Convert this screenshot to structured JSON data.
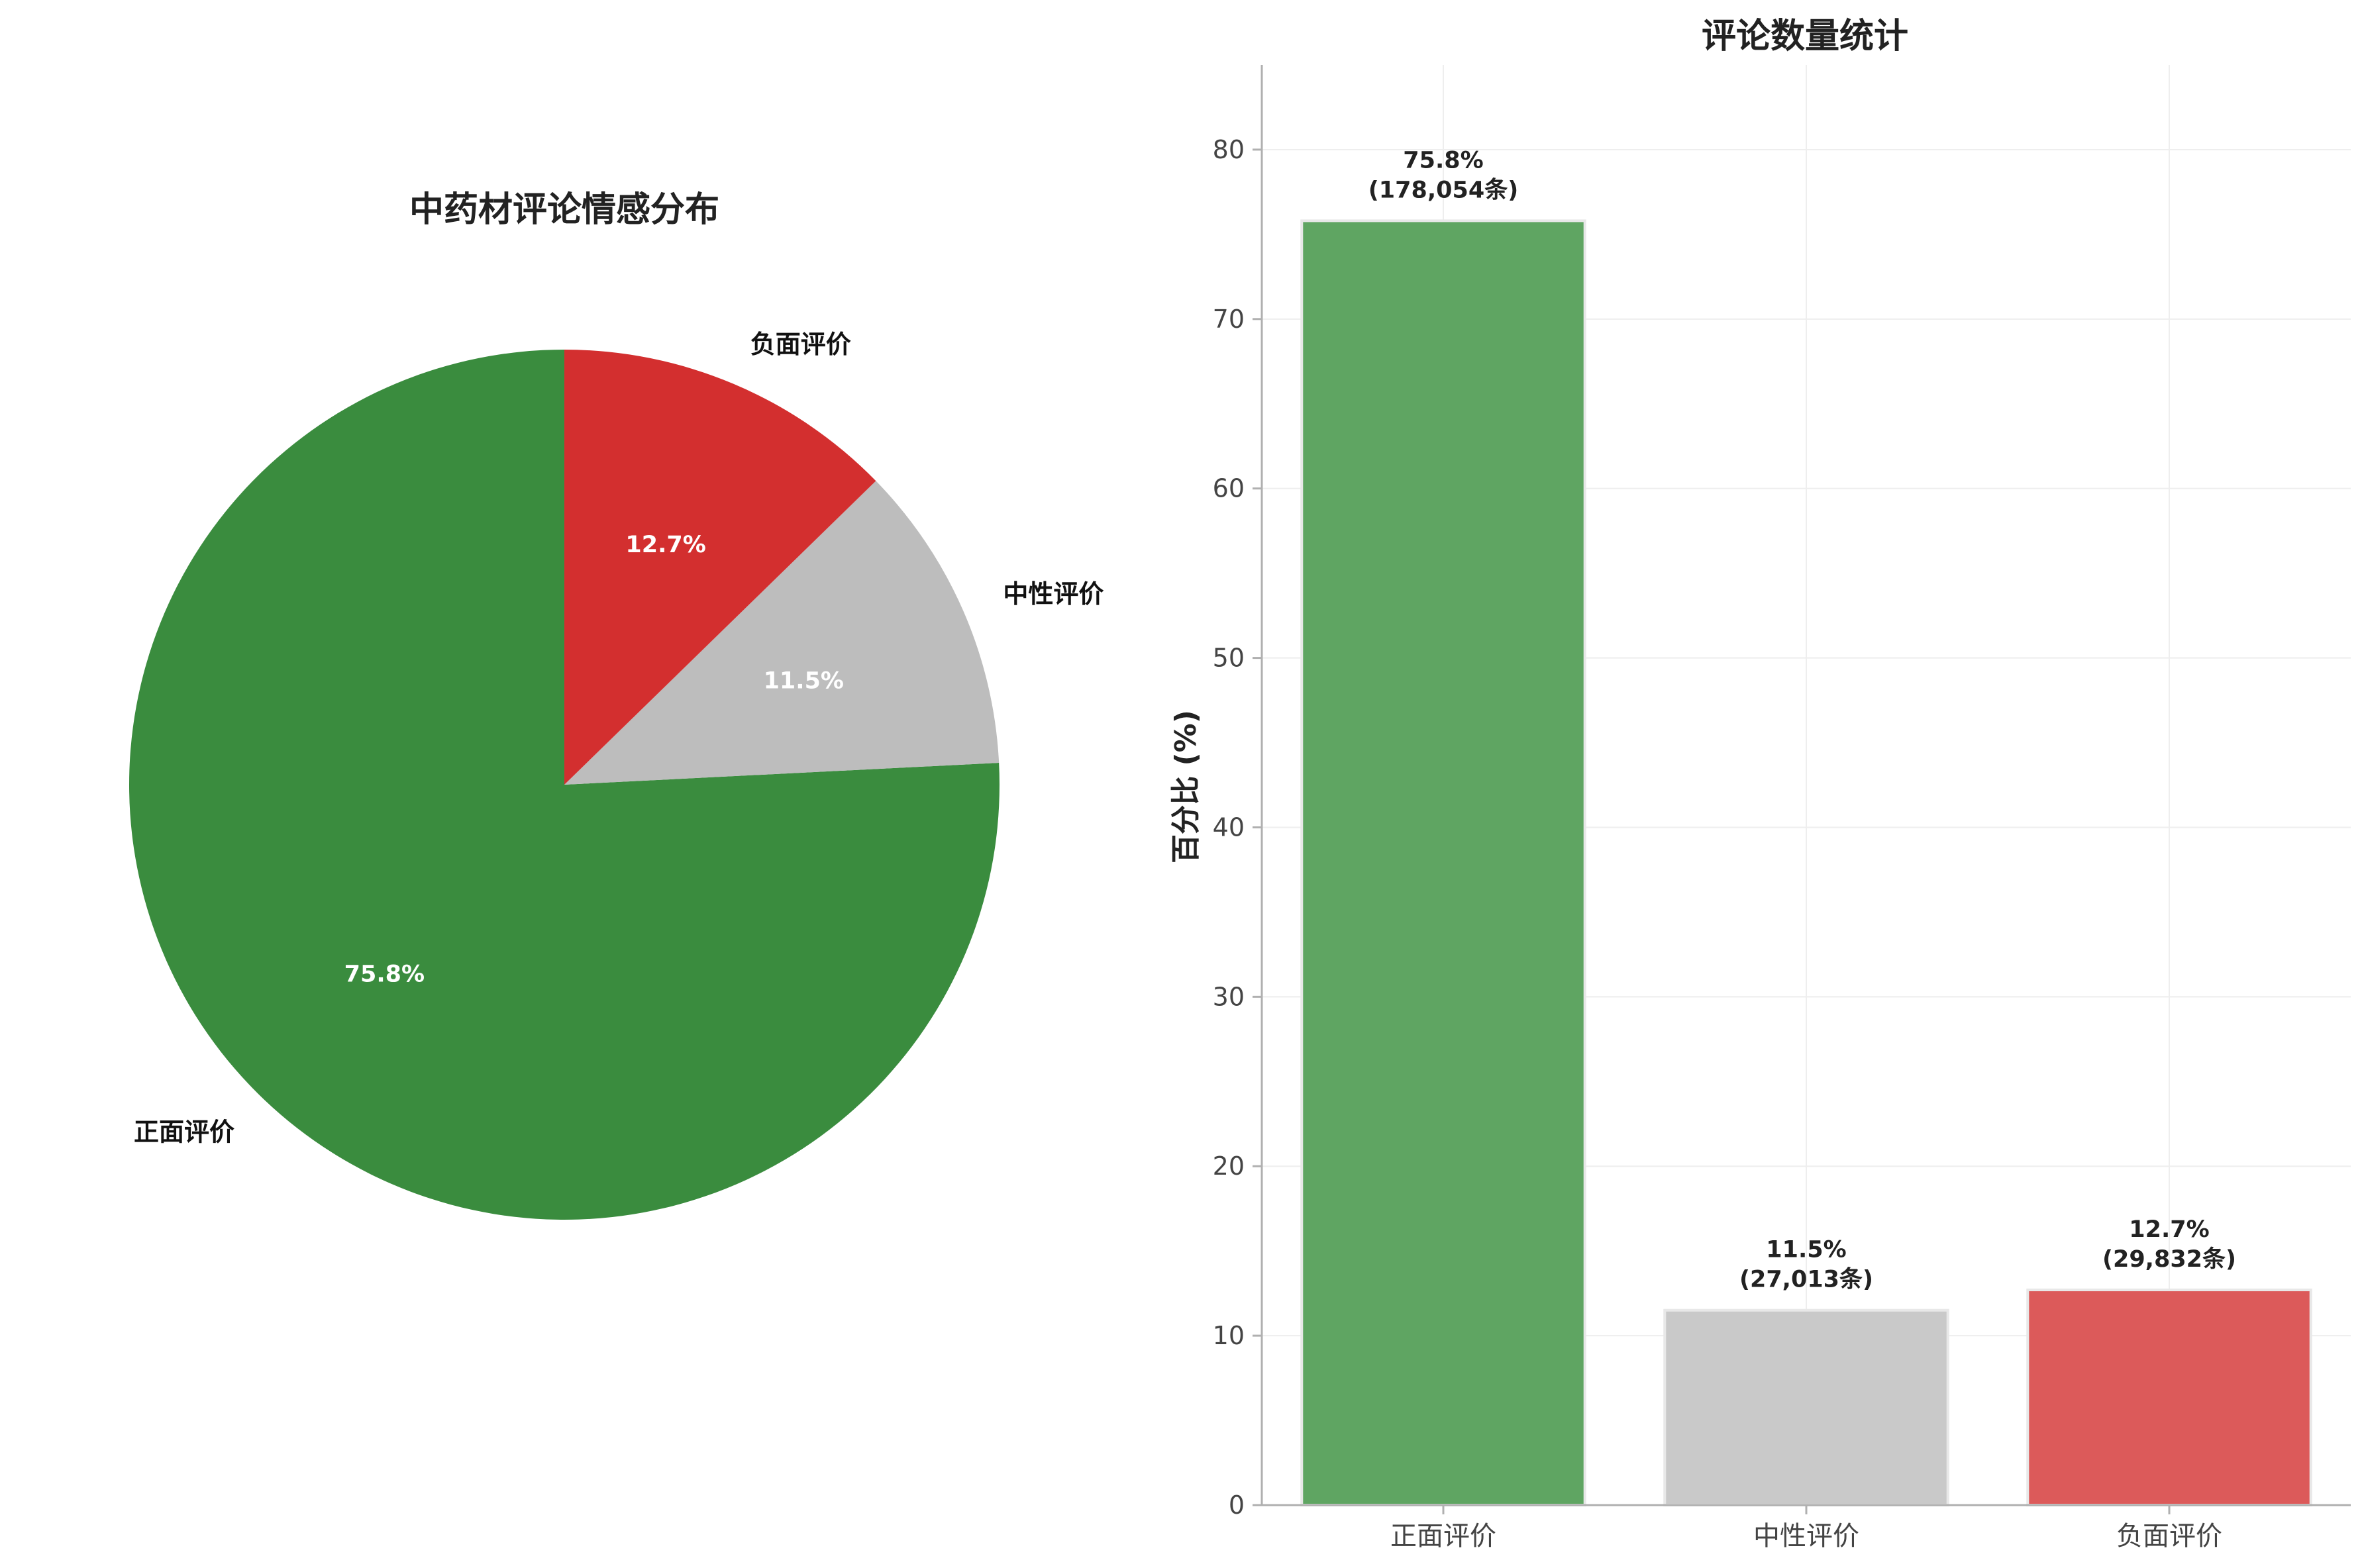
{
  "chart_data": [
    {
      "type": "pie",
      "title": "中药材评论情感分布",
      "categories": [
        "正面评价",
        "中性评价",
        "负面评价"
      ],
      "values": [
        75.8,
        11.5,
        12.7
      ],
      "value_labels": [
        "75.8%",
        "11.5%",
        "12.7%"
      ],
      "colors": [
        "#3a8c3e",
        "#bdbdbd",
        "#d32f2f"
      ],
      "start_angle": "90° (top), clockwise order: 负面评价, 中性评价, 正面评价"
    },
    {
      "type": "bar",
      "title": "评论数量统计",
      "categories": [
        "正面评价",
        "中性评价",
        "负面评价"
      ],
      "values": [
        75.8,
        11.5,
        12.7
      ],
      "counts": [
        "178,054",
        "27,013",
        "29,832"
      ],
      "bar_labels": [
        {
          "pct": "75.8%",
          "count": "(178,054条)"
        },
        {
          "pct": "11.5%",
          "count": "(27,013条)"
        },
        {
          "pct": "12.7%",
          "count": "(29,832条)"
        }
      ],
      "colors": [
        "#5fa562",
        "#c9c9c9",
        "#dc5a5a"
      ],
      "xlabel": "",
      "ylabel": "百分比 (%)",
      "ylim": [
        0,
        85
      ],
      "yticks": [
        0,
        10,
        20,
        30,
        40,
        50,
        60,
        70,
        80
      ],
      "grid": true
    }
  ]
}
